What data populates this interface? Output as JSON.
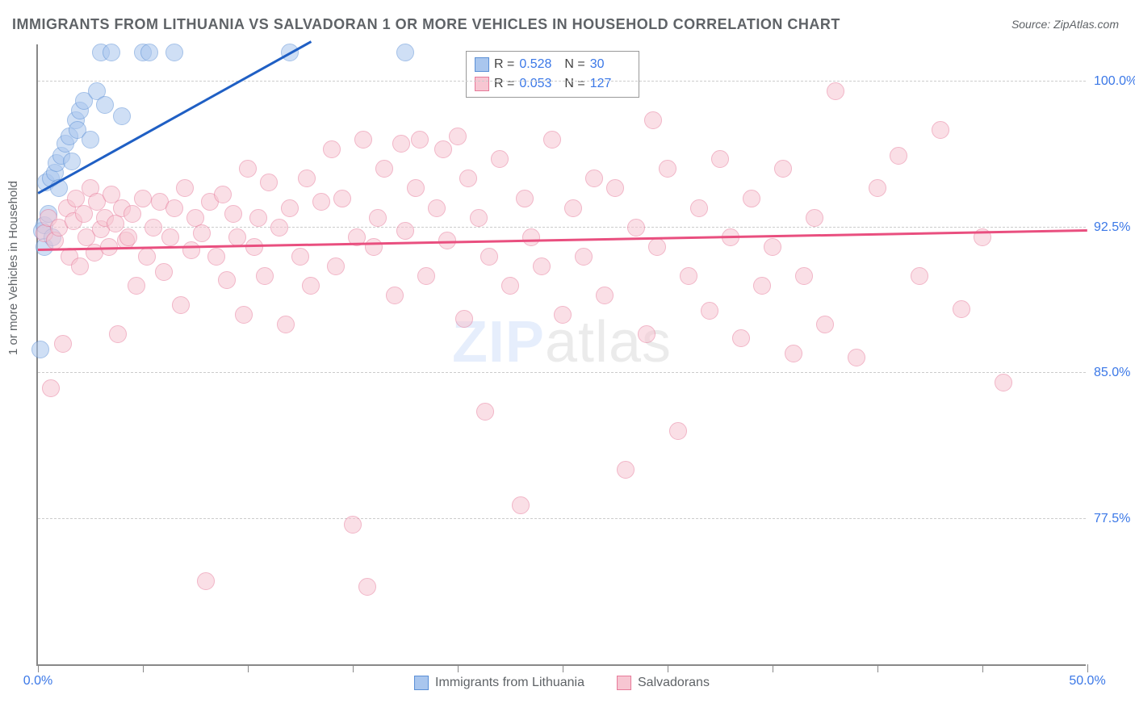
{
  "title": "IMMIGRANTS FROM LITHUANIA VS SALVADORAN 1 OR MORE VEHICLES IN HOUSEHOLD CORRELATION CHART",
  "source": "Source: ZipAtlas.com",
  "ylabel": "1 or more Vehicles in Household",
  "watermark_a": "ZIP",
  "watermark_b": "atlas",
  "chart": {
    "type": "scatter",
    "xlim": [
      0,
      50
    ],
    "ylim": [
      70,
      102
    ],
    "x_ticks": [
      0,
      5,
      10,
      15,
      20,
      25,
      30,
      35,
      40,
      45,
      50
    ],
    "x_tick_labels": {
      "0": "0.0%",
      "50": "50.0%"
    },
    "y_ticks": [
      77.5,
      85.0,
      92.5,
      100.0
    ],
    "y_tick_labels": [
      "77.5%",
      "85.0%",
      "92.5%",
      "100.0%"
    ],
    "background_color": "#ffffff",
    "grid_color": "#cccccc",
    "axis_color": "#888888",
    "marker_radius": 11,
    "marker_opacity": 0.55,
    "series": [
      {
        "name": "Immigrants from Lithuania",
        "fill": "#a9c6ee",
        "stroke": "#5a8fd6",
        "line_color": "#1f5fc4",
        "R": "0.528",
        "N": "30",
        "trend": {
          "x1": 0,
          "y1": 94.2,
          "x2": 13,
          "y2": 102
        },
        "points": [
          [
            0.2,
            92.3
          ],
          [
            0.3,
            92.6
          ],
          [
            0.4,
            94.8
          ],
          [
            0.5,
            93.2
          ],
          [
            0.6,
            95.0
          ],
          [
            0.8,
            95.3
          ],
          [
            0.9,
            95.8
          ],
          [
            1.0,
            94.5
          ],
          [
            1.1,
            96.2
          ],
          [
            1.3,
            96.8
          ],
          [
            1.5,
            97.2
          ],
          [
            1.6,
            95.9
          ],
          [
            1.8,
            98.0
          ],
          [
            1.9,
            97.5
          ],
          [
            2.0,
            98.5
          ],
          [
            2.2,
            99.0
          ],
          [
            2.5,
            97.0
          ],
          [
            2.8,
            99.5
          ],
          [
            3.0,
            101.5
          ],
          [
            3.2,
            98.8
          ],
          [
            3.5,
            101.5
          ],
          [
            4.0,
            98.2
          ],
          [
            5.0,
            101.5
          ],
          [
            5.3,
            101.5
          ],
          [
            6.5,
            101.5
          ],
          [
            12.0,
            101.5
          ],
          [
            17.5,
            101.5
          ],
          [
            0.1,
            86.2
          ],
          [
            0.3,
            91.5
          ],
          [
            0.7,
            92.0
          ]
        ]
      },
      {
        "name": "Salvadorans",
        "fill": "#f7c6d2",
        "stroke": "#e77a9a",
        "line_color": "#e94f7f",
        "R": "0.053",
        "N": "127",
        "trend": {
          "x1": 0,
          "y1": 91.3,
          "x2": 50,
          "y2": 92.3
        },
        "points": [
          [
            0.3,
            92.2
          ],
          [
            0.5,
            93.0
          ],
          [
            0.6,
            84.2
          ],
          [
            0.8,
            91.8
          ],
          [
            1.0,
            92.5
          ],
          [
            1.2,
            86.5
          ],
          [
            1.4,
            93.5
          ],
          [
            1.5,
            91.0
          ],
          [
            1.7,
            92.8
          ],
          [
            1.8,
            94.0
          ],
          [
            2.0,
            90.5
          ],
          [
            2.2,
            93.2
          ],
          [
            2.3,
            92.0
          ],
          [
            2.5,
            94.5
          ],
          [
            2.7,
            91.2
          ],
          [
            2.8,
            93.8
          ],
          [
            3.0,
            92.4
          ],
          [
            3.2,
            93.0
          ],
          [
            3.4,
            91.5
          ],
          [
            3.5,
            94.2
          ],
          [
            3.7,
            92.7
          ],
          [
            3.8,
            87.0
          ],
          [
            4.0,
            93.5
          ],
          [
            4.2,
            91.8
          ],
          [
            4.3,
            92.0
          ],
          [
            4.5,
            93.2
          ],
          [
            4.7,
            89.5
          ],
          [
            5.0,
            94.0
          ],
          [
            5.2,
            91.0
          ],
          [
            5.5,
            92.5
          ],
          [
            5.8,
            93.8
          ],
          [
            6.0,
            90.2
          ],
          [
            6.3,
            92.0
          ],
          [
            6.5,
            93.5
          ],
          [
            6.8,
            88.5
          ],
          [
            7.0,
            94.5
          ],
          [
            7.3,
            91.3
          ],
          [
            7.5,
            93.0
          ],
          [
            7.8,
            92.2
          ],
          [
            8.0,
            74.3
          ],
          [
            8.2,
            93.8
          ],
          [
            8.5,
            91.0
          ],
          [
            8.8,
            94.2
          ],
          [
            9.0,
            89.8
          ],
          [
            9.3,
            93.2
          ],
          [
            9.5,
            92.0
          ],
          [
            9.8,
            88.0
          ],
          [
            10.0,
            95.5
          ],
          [
            10.3,
            91.5
          ],
          [
            10.5,
            93.0
          ],
          [
            10.8,
            90.0
          ],
          [
            11.0,
            94.8
          ],
          [
            11.5,
            92.5
          ],
          [
            11.8,
            87.5
          ],
          [
            12.0,
            93.5
          ],
          [
            12.5,
            91.0
          ],
          [
            12.8,
            95.0
          ],
          [
            13.0,
            89.5
          ],
          [
            13.5,
            93.8
          ],
          [
            14.0,
            96.5
          ],
          [
            14.2,
            90.5
          ],
          [
            14.5,
            94.0
          ],
          [
            15.0,
            77.2
          ],
          [
            15.2,
            92.0
          ],
          [
            15.5,
            97.0
          ],
          [
            15.7,
            74.0
          ],
          [
            16.0,
            91.5
          ],
          [
            16.2,
            93.0
          ],
          [
            16.5,
            95.5
          ],
          [
            17.0,
            89.0
          ],
          [
            17.3,
            96.8
          ],
          [
            17.5,
            92.3
          ],
          [
            18.0,
            94.5
          ],
          [
            18.2,
            97.0
          ],
          [
            18.5,
            90.0
          ],
          [
            19.0,
            93.5
          ],
          [
            19.3,
            96.5
          ],
          [
            19.5,
            91.8
          ],
          [
            20.0,
            97.2
          ],
          [
            20.3,
            87.8
          ],
          [
            20.5,
            95.0
          ],
          [
            21.0,
            93.0
          ],
          [
            21.3,
            83.0
          ],
          [
            21.5,
            91.0
          ],
          [
            22.0,
            96.0
          ],
          [
            22.5,
            89.5
          ],
          [
            23.0,
            78.2
          ],
          [
            23.2,
            94.0
          ],
          [
            23.5,
            92.0
          ],
          [
            24.0,
            90.5
          ],
          [
            24.5,
            97.0
          ],
          [
            25.0,
            88.0
          ],
          [
            25.5,
            93.5
          ],
          [
            26.0,
            91.0
          ],
          [
            26.5,
            95.0
          ],
          [
            27.0,
            89.0
          ],
          [
            27.5,
            94.5
          ],
          [
            28.0,
            80.0
          ],
          [
            28.5,
            92.5
          ],
          [
            29.0,
            87.0
          ],
          [
            29.3,
            98.0
          ],
          [
            29.5,
            91.5
          ],
          [
            30.0,
            95.5
          ],
          [
            30.5,
            82.0
          ],
          [
            31.0,
            90.0
          ],
          [
            31.5,
            93.5
          ],
          [
            32.0,
            88.2
          ],
          [
            32.5,
            96.0
          ],
          [
            33.0,
            92.0
          ],
          [
            33.5,
            86.8
          ],
          [
            34.0,
            94.0
          ],
          [
            34.5,
            89.5
          ],
          [
            35.0,
            91.5
          ],
          [
            35.5,
            95.5
          ],
          [
            36.0,
            86.0
          ],
          [
            36.5,
            90.0
          ],
          [
            37.0,
            93.0
          ],
          [
            37.5,
            87.5
          ],
          [
            38.0,
            99.5
          ],
          [
            39.0,
            85.8
          ],
          [
            40.0,
            94.5
          ],
          [
            41.0,
            96.2
          ],
          [
            42.0,
            90.0
          ],
          [
            43.0,
            97.5
          ],
          [
            44.0,
            88.3
          ],
          [
            45.0,
            92.0
          ],
          [
            46.0,
            84.5
          ]
        ]
      }
    ]
  },
  "legend_bottom": [
    {
      "key": 0,
      "label": "Immigrants from Lithuania"
    },
    {
      "key": 1,
      "label": "Salvadorans"
    }
  ]
}
